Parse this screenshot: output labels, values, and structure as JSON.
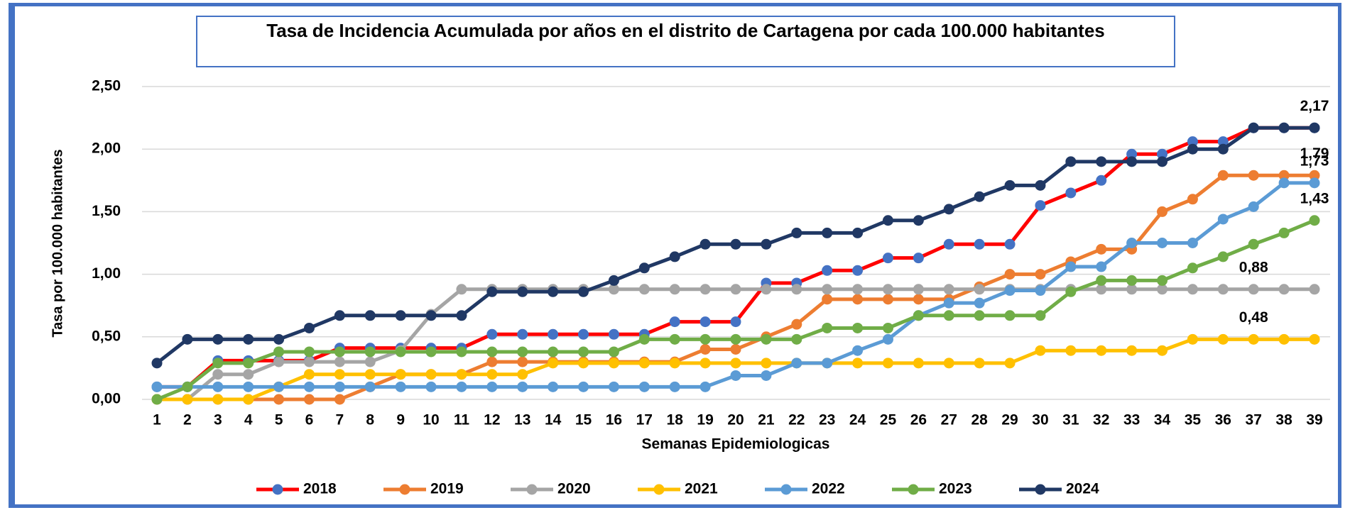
{
  "chart_data": {
    "type": "line",
    "title": "Tasa de Incidencia Acumulada por años en el distrito de Cartagena por cada 100.000 habitantes",
    "x_label": "Semanas Epidemiologicas",
    "y_label": "Tasa por 100.000 habitantes",
    "categories": [
      1,
      2,
      3,
      4,
      5,
      6,
      7,
      8,
      9,
      10,
      11,
      12,
      13,
      14,
      15,
      16,
      17,
      18,
      19,
      20,
      21,
      22,
      23,
      24,
      25,
      26,
      27,
      28,
      29,
      30,
      31,
      32,
      33,
      34,
      35,
      36,
      37,
      38,
      39
    ],
    "ylim": [
      0,
      2.5
    ],
    "yticks": [
      {
        "value": 0,
        "label": "0,00"
      },
      {
        "value": 0.5,
        "label": "0,50"
      },
      {
        "value": 1,
        "label": "1,00"
      },
      {
        "value": 1.5,
        "label": "1,50"
      },
      {
        "value": 2,
        "label": "2,00"
      },
      {
        "value": 2.5,
        "label": "2,50"
      }
    ],
    "grid": true,
    "legend": "bottom",
    "series": [
      {
        "name": "2018",
        "color": "#ff0000",
        "marker_color": "#4472c4",
        "values": [
          0.1,
          0.1,
          0.31,
          0.31,
          0.31,
          0.31,
          0.41,
          0.41,
          0.41,
          0.41,
          0.41,
          0.52,
          0.52,
          0.52,
          0.52,
          0.52,
          0.52,
          0.62,
          0.62,
          0.62,
          0.93,
          0.93,
          1.03,
          1.03,
          1.13,
          1.13,
          1.24,
          1.24,
          1.24,
          1.55,
          1.65,
          1.75,
          1.96,
          1.96,
          2.06,
          2.06,
          2.17,
          2.17,
          2.17
        ]
      },
      {
        "name": "2019",
        "color": "#ed7d31",
        "marker_color": "#ed7d31",
        "values": [
          0,
          0,
          0,
          0,
          0,
          0,
          0,
          0.1,
          0.2,
          0.2,
          0.2,
          0.3,
          0.3,
          0.3,
          0.3,
          0.3,
          0.3,
          0.3,
          0.4,
          0.4,
          0.5,
          0.6,
          0.8,
          0.8,
          0.8,
          0.8,
          0.8,
          0.9,
          1.0,
          1.0,
          1.1,
          1.2,
          1.2,
          1.5,
          1.6,
          1.79,
          1.79,
          1.79,
          1.79
        ],
        "value_labels": [
          null,
          null,
          null,
          null,
          null,
          null,
          null,
          null,
          null,
          null,
          null,
          null,
          null,
          null,
          null,
          null,
          null,
          null,
          null,
          null,
          null,
          null,
          null,
          null,
          null,
          null,
          null,
          null,
          null,
          null,
          null,
          null,
          null,
          null,
          null,
          null,
          null,
          null,
          "1,79"
        ]
      },
      {
        "name": "2020",
        "color": "#a5a5a5",
        "marker_color": "#a5a5a5",
        "values": [
          0,
          0,
          0.2,
          0.2,
          0.3,
          0.3,
          0.3,
          0.3,
          0.39,
          0.68,
          0.88,
          0.88,
          0.88,
          0.88,
          0.88,
          0.88,
          0.88,
          0.88,
          0.88,
          0.88,
          0.88,
          0.88,
          0.88,
          0.88,
          0.88,
          0.88,
          0.88,
          0.88,
          0.88,
          0.88,
          0.88,
          0.88,
          0.88,
          0.88,
          0.88,
          0.88,
          0.88,
          0.88,
          0.88
        ],
        "value_labels": [
          null,
          null,
          null,
          null,
          null,
          null,
          null,
          null,
          null,
          null,
          null,
          null,
          null,
          null,
          null,
          null,
          null,
          null,
          null,
          null,
          null,
          null,
          null,
          null,
          null,
          null,
          null,
          null,
          null,
          null,
          null,
          null,
          null,
          null,
          null,
          null,
          "0,88",
          null,
          null
        ]
      },
      {
        "name": "2021",
        "color": "#ffc000",
        "marker_color": "#ffc000",
        "values": [
          0,
          0,
          0,
          0,
          0.1,
          0.2,
          0.2,
          0.2,
          0.2,
          0.2,
          0.2,
          0.2,
          0.2,
          0.29,
          0.29,
          0.29,
          0.29,
          0.29,
          0.29,
          0.29,
          0.29,
          0.29,
          0.29,
          0.29,
          0.29,
          0.29,
          0.29,
          0.29,
          0.29,
          0.39,
          0.39,
          0.39,
          0.39,
          0.39,
          0.48,
          0.48,
          0.48,
          0.48,
          0.48
        ],
        "value_labels": [
          null,
          null,
          null,
          null,
          null,
          null,
          null,
          null,
          null,
          null,
          null,
          null,
          null,
          null,
          null,
          null,
          null,
          null,
          null,
          null,
          null,
          null,
          null,
          null,
          null,
          null,
          null,
          null,
          null,
          null,
          null,
          null,
          null,
          null,
          null,
          null,
          "0,48",
          null,
          null
        ]
      },
      {
        "name": "2022",
        "color": "#5b9bd5",
        "marker_color": "#5b9bd5",
        "values": [
          0.1,
          0.1,
          0.1,
          0.1,
          0.1,
          0.1,
          0.1,
          0.1,
          0.1,
          0.1,
          0.1,
          0.1,
          0.1,
          0.1,
          0.1,
          0.1,
          0.1,
          0.1,
          0.1,
          0.19,
          0.19,
          0.29,
          0.29,
          0.39,
          0.48,
          0.67,
          0.77,
          0.77,
          0.87,
          0.87,
          1.06,
          1.06,
          1.25,
          1.25,
          1.25,
          1.44,
          1.54,
          1.73,
          1.73
        ],
        "value_labels": [
          null,
          null,
          null,
          null,
          null,
          null,
          null,
          null,
          null,
          null,
          null,
          null,
          null,
          null,
          null,
          null,
          null,
          null,
          null,
          null,
          null,
          null,
          null,
          null,
          null,
          null,
          null,
          null,
          null,
          null,
          null,
          null,
          null,
          null,
          null,
          null,
          null,
          null,
          "1,73"
        ]
      },
      {
        "name": "2023",
        "color": "#70ad47",
        "marker_color": "#70ad47",
        "values": [
          0,
          0.1,
          0.29,
          0.29,
          0.38,
          0.38,
          0.38,
          0.38,
          0.38,
          0.38,
          0.38,
          0.38,
          0.38,
          0.38,
          0.38,
          0.38,
          0.48,
          0.48,
          0.48,
          0.48,
          0.48,
          0.48,
          0.57,
          0.57,
          0.57,
          0.67,
          0.67,
          0.67,
          0.67,
          0.67,
          0.86,
          0.95,
          0.95,
          0.95,
          1.05,
          1.14,
          1.24,
          1.33,
          1.43
        ],
        "value_labels": [
          null,
          null,
          null,
          null,
          null,
          null,
          null,
          null,
          null,
          null,
          null,
          null,
          null,
          null,
          null,
          null,
          null,
          null,
          null,
          null,
          null,
          null,
          null,
          null,
          null,
          null,
          null,
          null,
          null,
          null,
          null,
          null,
          null,
          null,
          null,
          null,
          null,
          null,
          "1,43"
        ]
      },
      {
        "name": "2024",
        "color": "#203864",
        "marker_color": "#203864",
        "values": [
          0.29,
          0.48,
          0.48,
          0.48,
          0.48,
          0.57,
          0.67,
          0.67,
          0.67,
          0.67,
          0.67,
          0.86,
          0.86,
          0.86,
          0.86,
          0.95,
          1.05,
          1.14,
          1.24,
          1.24,
          1.24,
          1.33,
          1.33,
          1.33,
          1.43,
          1.43,
          1.52,
          1.62,
          1.71,
          1.71,
          1.9,
          1.9,
          1.9,
          1.9,
          2.0,
          2.0,
          2.17,
          2.17,
          2.17
        ],
        "value_labels": [
          null,
          null,
          null,
          null,
          null,
          null,
          null,
          null,
          null,
          null,
          null,
          null,
          null,
          null,
          null,
          null,
          null,
          null,
          null,
          null,
          null,
          null,
          null,
          null,
          null,
          null,
          null,
          null,
          null,
          null,
          null,
          null,
          null,
          null,
          null,
          null,
          null,
          null,
          "2,17"
        ]
      }
    ]
  }
}
